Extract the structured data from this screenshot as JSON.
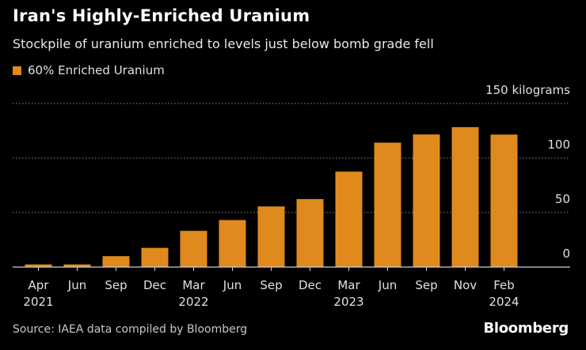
{
  "title": "Iran's Highly-Enriched Uranium",
  "subtitle": "Stockpile of uranium enriched to levels just below bomb grade fell",
  "legend": {
    "label": "60% Enriched Uranium",
    "color": "#e08a1e"
  },
  "source": "Source: IAEA data compiled by Bloomberg",
  "brand": "Bloomberg",
  "chart_data": {
    "type": "bar",
    "title": "Iran's Highly-Enriched Uranium",
    "xlabel": "",
    "ylabel": "kilograms",
    "ylim": [
      0,
      150
    ],
    "yticks": [
      0,
      50,
      100,
      150
    ],
    "ytick_labels": [
      "0",
      "50",
      "100",
      "150 kilograms"
    ],
    "categories": [
      "Apr 2021",
      "Jun 2021",
      "Sep 2021",
      "Dec 2021",
      "Mar 2022",
      "Jun 2022",
      "Sep 2022",
      "Dec 2022",
      "Mar 2023",
      "Jun 2023",
      "Sep 2023",
      "Nov 2023",
      "Feb 2024"
    ],
    "tick_month_labels": [
      "Apr",
      "Jun",
      "Sep",
      "Dec",
      "Mar",
      "Jun",
      "Sep",
      "Dec",
      "Mar",
      "Jun",
      "Sep",
      "Nov",
      "Feb"
    ],
    "tick_year_labels": [
      "2021",
      "",
      "",
      "",
      "2022",
      "",
      "",
      "",
      "2023",
      "",
      "",
      "",
      "2024"
    ],
    "series": [
      {
        "name": "60% Enriched Uranium",
        "values": [
          2.4,
          2.4,
          10,
          17.6,
          33.2,
          43.1,
          55.6,
          62.3,
          87.5,
          114.1,
          121.6,
          128.3,
          121.5
        ]
      }
    ],
    "bar_color": "#e08a1e",
    "grid": true,
    "legend_position": "top-left"
  }
}
